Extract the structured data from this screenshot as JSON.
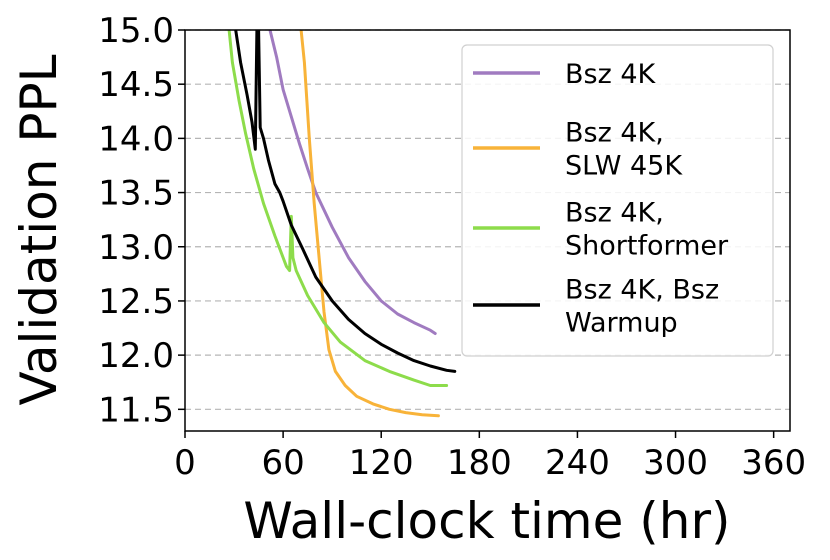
{
  "chart_data": {
    "type": "line",
    "title": "",
    "xlabel": "Wall-clock time (hr)",
    "ylabel": "Validation PPL",
    "xlim": [
      0,
      370
    ],
    "ylim": [
      11.3,
      15.0
    ],
    "xticks": [
      0,
      60,
      120,
      180,
      240,
      300,
      360
    ],
    "yticks": [
      11.5,
      12.0,
      12.5,
      13.0,
      13.5,
      14.0,
      14.5,
      15.0
    ],
    "xtick_labels": [
      "0",
      "60",
      "120",
      "180",
      "240",
      "300",
      "360"
    ],
    "ytick_labels": [
      "11.5",
      "12.0",
      "12.5",
      "13.0",
      "13.5",
      "14.0",
      "14.5",
      "15.0"
    ],
    "grid": "horizontal dashed",
    "legend_position": "top-right",
    "series": [
      {
        "name": "Bsz 4K",
        "legend_lines": [
          "Bsz 4K"
        ],
        "color": "#a07bc0",
        "points": [
          [
            52,
            15.0
          ],
          [
            56,
            14.75
          ],
          [
            60,
            14.45
          ],
          [
            65,
            14.2
          ],
          [
            70,
            13.95
          ],
          [
            75,
            13.72
          ],
          [
            80,
            13.5
          ],
          [
            90,
            13.18
          ],
          [
            100,
            12.9
          ],
          [
            110,
            12.68
          ],
          [
            120,
            12.5
          ],
          [
            130,
            12.38
          ],
          [
            140,
            12.3
          ],
          [
            150,
            12.23
          ],
          [
            153,
            12.2
          ]
        ]
      },
      {
        "name": "Bsz 4K, SLW 45K",
        "legend_lines": [
          "Bsz 4K,",
          "SLW 45K"
        ],
        "color": "#f8b339",
        "points": [
          [
            71,
            15.0
          ],
          [
            73,
            14.7
          ],
          [
            76,
            14.0
          ],
          [
            79,
            13.4
          ],
          [
            82,
            12.9
          ],
          [
            85,
            12.4
          ],
          [
            88,
            12.05
          ],
          [
            92,
            11.85
          ],
          [
            98,
            11.72
          ],
          [
            105,
            11.62
          ],
          [
            115,
            11.55
          ],
          [
            125,
            11.5
          ],
          [
            135,
            11.47
          ],
          [
            145,
            11.45
          ],
          [
            155,
            11.44
          ]
        ]
      },
      {
        "name": "Bsz 4K, Shortformer",
        "legend_lines": [
          "Bsz 4K,",
          "Shortformer"
        ],
        "color": "#8ddc4b",
        "points": [
          [
            27,
            15.0
          ],
          [
            29,
            14.7
          ],
          [
            33,
            14.35
          ],
          [
            37,
            14.05
          ],
          [
            42,
            13.72
          ],
          [
            48,
            13.4
          ],
          [
            55,
            13.1
          ],
          [
            60,
            12.9
          ],
          [
            62,
            12.82
          ],
          [
            64,
            12.78
          ],
          [
            65,
            13.28
          ],
          [
            66,
            12.9
          ],
          [
            68,
            12.78
          ],
          [
            75,
            12.55
          ],
          [
            85,
            12.3
          ],
          [
            95,
            12.12
          ],
          [
            110,
            11.95
          ],
          [
            125,
            11.85
          ],
          [
            140,
            11.77
          ],
          [
            150,
            11.72
          ],
          [
            160,
            11.72
          ]
        ]
      },
      {
        "name": "Bsz 4K, Bsz Warmup",
        "legend_lines": [
          "Bsz 4K, Bsz",
          "Warmup"
        ],
        "color": "#000000",
        "points": [
          [
            31,
            15.0
          ],
          [
            34,
            14.7
          ],
          [
            38,
            14.4
          ],
          [
            41,
            14.15
          ],
          [
            43,
            13.9
          ],
          [
            44,
            15.0
          ],
          [
            45,
            15.0
          ],
          [
            46,
            14.1
          ],
          [
            48,
            14.0
          ],
          [
            51,
            13.8
          ],
          [
            55,
            13.58
          ],
          [
            58,
            13.5
          ],
          [
            60,
            13.42
          ],
          [
            65,
            13.2
          ],
          [
            72,
            12.98
          ],
          [
            80,
            12.72
          ],
          [
            90,
            12.5
          ],
          [
            100,
            12.33
          ],
          [
            110,
            12.2
          ],
          [
            120,
            12.1
          ],
          [
            130,
            12.02
          ],
          [
            140,
            11.95
          ],
          [
            150,
            11.9
          ],
          [
            160,
            11.86
          ],
          [
            165,
            11.85
          ]
        ]
      }
    ]
  }
}
